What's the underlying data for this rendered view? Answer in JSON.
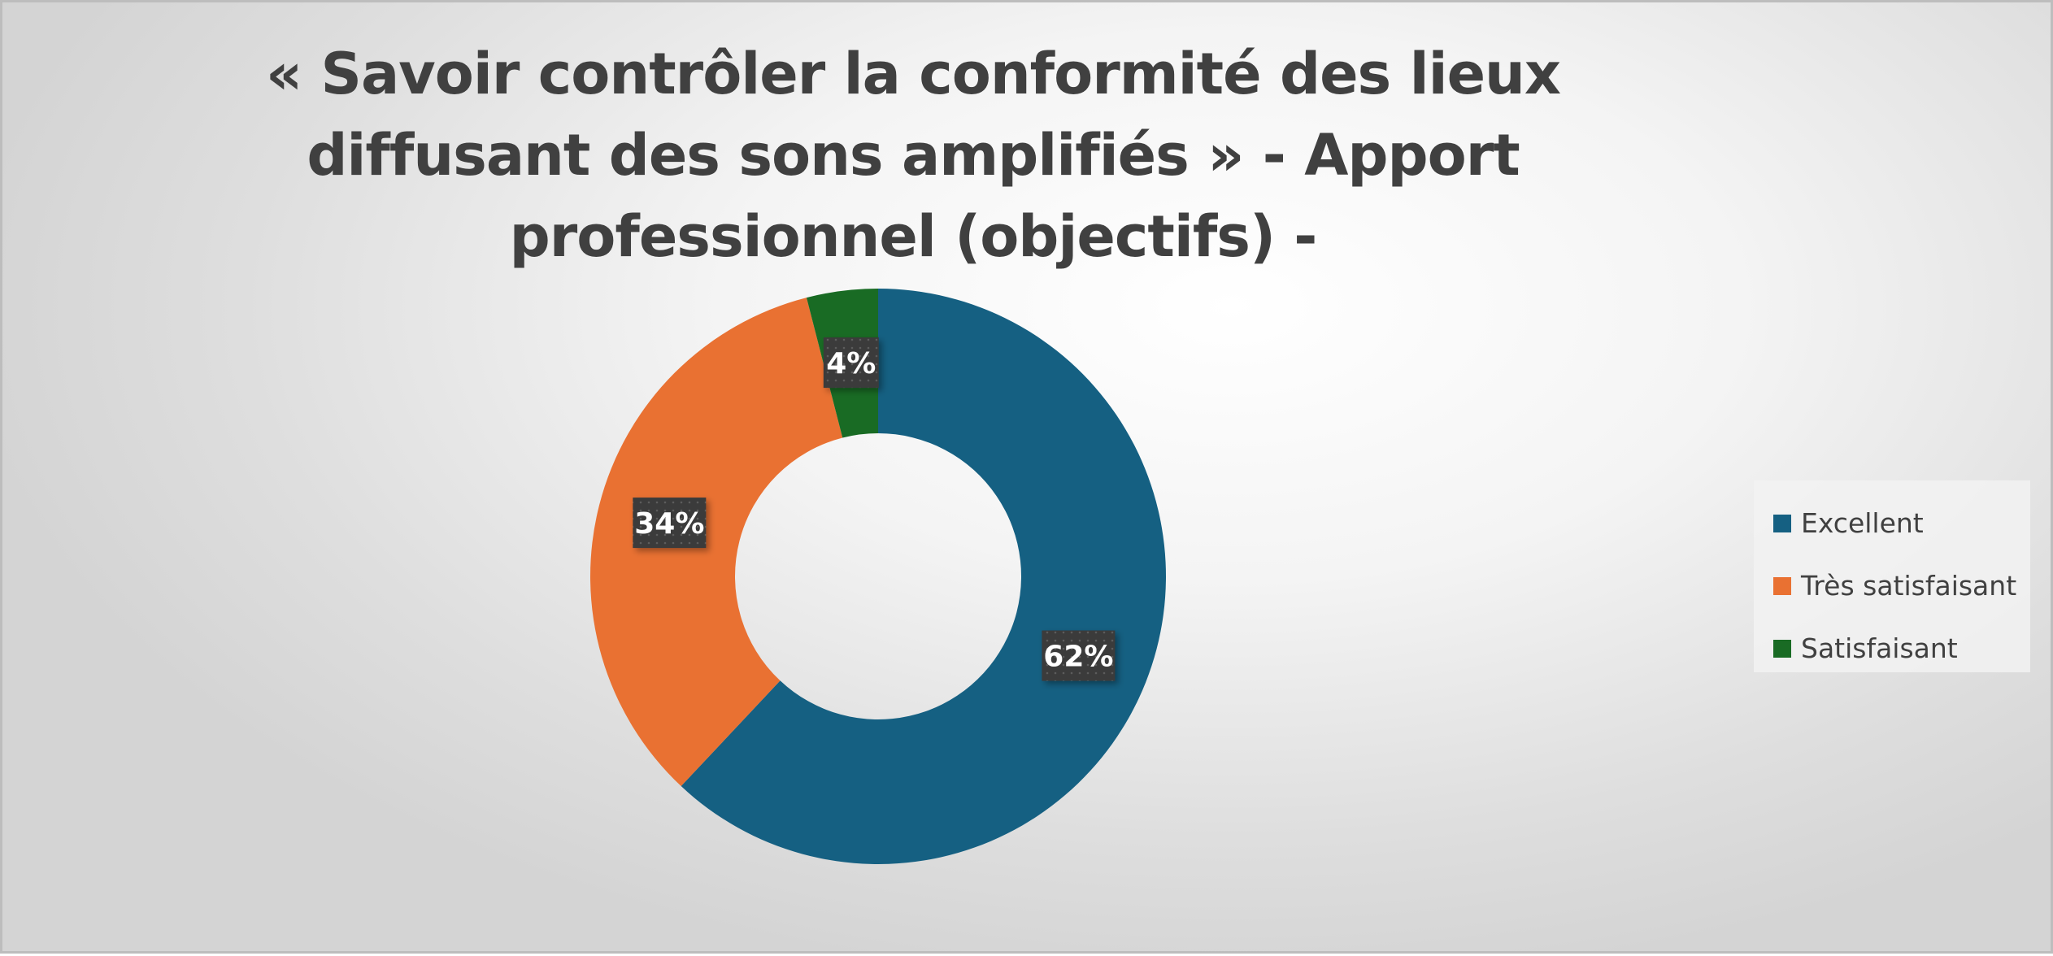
{
  "chart_data": {
    "type": "pie",
    "variant": "donut",
    "title": "« Savoir contrôler la conformité des lieux diffusant des sons amplifiés » - Apport professionnel (objectifs) -",
    "categories": [
      "Excellent",
      "Très satisfaisant",
      "Satisfaisant"
    ],
    "values": [
      62,
      34,
      4
    ],
    "data_labels": [
      "62%",
      "34%",
      "4%"
    ],
    "colors": [
      "#156082",
      "#E97132",
      "#196B24"
    ],
    "legend": {
      "position": "right",
      "entries": [
        "Excellent",
        "Très satisfaisant",
        "Satisfaisant"
      ]
    }
  }
}
